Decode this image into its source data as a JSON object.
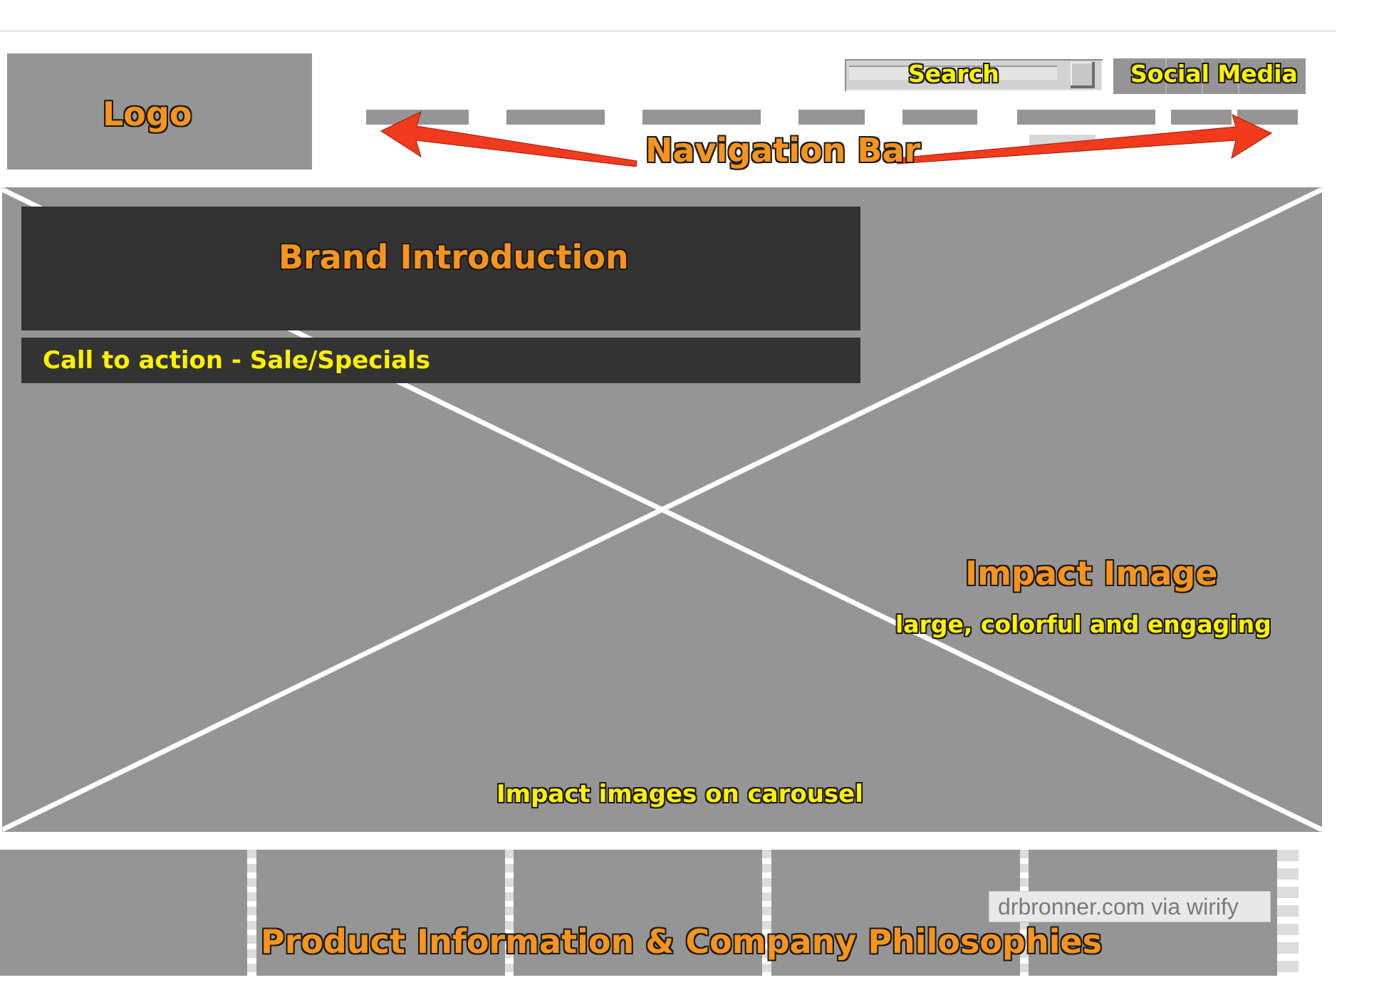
{
  "header": {
    "logo_label": "Logo",
    "search_label": "Search",
    "social_label": "Social Media",
    "nav_label": "Navigation Bar"
  },
  "hero": {
    "brand_intro_label": "Brand Introduction",
    "cta_label": "Call to action - Sale/Specials",
    "impact_title": "Impact Image",
    "impact_subtitle": "large, colorful and engaging",
    "carousel_label": "Impact images on carousel"
  },
  "footer": {
    "product_label": "Product Information & Company Philosophies",
    "watermark": "drbronner.com via wirify"
  },
  "colors": {
    "placeholder_gray": "#959595",
    "dark_panel": "#333333",
    "label_orange": "#f7941d",
    "label_yellow": "#fff200",
    "arrow_red": "#f23b1c"
  }
}
